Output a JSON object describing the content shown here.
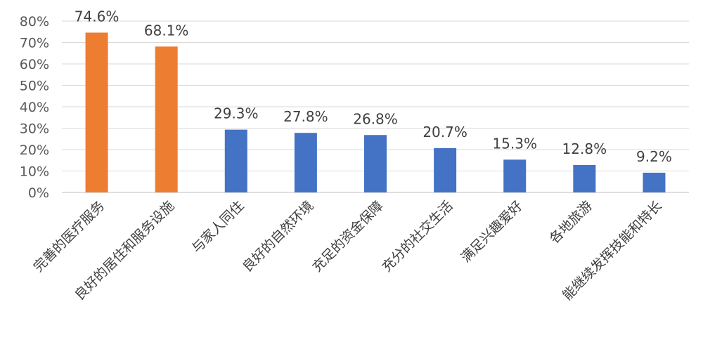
{
  "chart_data": {
    "type": "bar",
    "categories": [
      "完善的医疗服务",
      "良好的居住和服务设施",
      "与家人同住",
      "良好的自然环境",
      "充足的资金保障",
      "充分的社交生活",
      "满足兴趣爱好",
      "各地旅游",
      "能继续发挥技能和特长"
    ],
    "values": [
      74.6,
      68.1,
      29.3,
      27.8,
      26.8,
      20.7,
      15.3,
      12.8,
      9.2
    ],
    "data_labels": [
      "74.6%",
      "68.1%",
      "29.3%",
      "27.8%",
      "26.8%",
      "20.7%",
      "15.3%",
      "12.8%",
      "9.2%"
    ],
    "bar_colors": [
      "#ED7D31",
      "#ED7D31",
      "#4472C4",
      "#4472C4",
      "#4472C4",
      "#4472C4",
      "#4472C4",
      "#4472C4",
      "#4472C4"
    ],
    "yticks": [
      0,
      10,
      20,
      30,
      40,
      50,
      60,
      70,
      80
    ],
    "ytick_labels": [
      "0%",
      "10%",
      "20%",
      "30%",
      "40%",
      "50%",
      "60%",
      "70%",
      "80%"
    ],
    "ylim": [
      0,
      80
    ],
    "grid": true,
    "legend": "none",
    "title": "",
    "xlabel": "",
    "ylabel": ""
  }
}
